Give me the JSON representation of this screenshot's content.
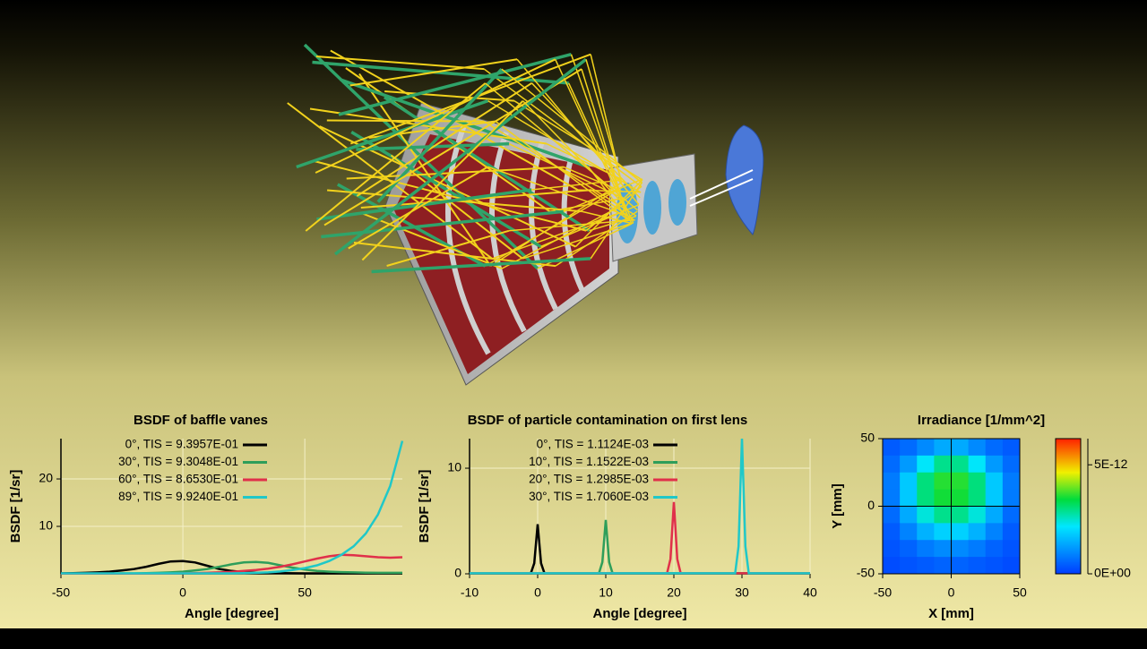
{
  "chart_data": [
    {
      "type": "line",
      "title": "BSDF of baffle vanes",
      "xlabel": "Angle [degree]",
      "ylabel": "BSDF [1/sr]",
      "x": [
        -50,
        -45,
        -40,
        -35,
        -30,
        -25,
        -20,
        -15,
        -10,
        -5,
        0,
        5,
        10,
        15,
        20,
        25,
        30,
        35,
        40,
        45,
        50,
        55,
        60,
        65,
        70,
        75,
        80,
        85,
        90
      ],
      "series": [
        {
          "name": "0°, TIS = 9.3957E-01",
          "color": "#000000",
          "values": [
            0.1,
            0.15,
            0.2,
            0.3,
            0.45,
            0.7,
            1.0,
            1.5,
            2.1,
            2.6,
            2.7,
            2.4,
            1.7,
            1.0,
            0.6,
            0.35,
            0.25,
            0.2,
            0.15,
            0.12,
            0.1,
            0.1,
            0.1,
            0.1,
            0.1,
            0.1,
            0.1,
            0.1,
            0.1
          ]
        },
        {
          "name": "30°, TIS = 9.3048E-01",
          "color": "#2e9e5a",
          "values": [
            0.05,
            0.05,
            0.05,
            0.05,
            0.05,
            0.1,
            0.1,
            0.15,
            0.2,
            0.3,
            0.45,
            0.7,
            1.0,
            1.5,
            2.0,
            2.4,
            2.5,
            2.3,
            1.8,
            1.3,
            0.9,
            0.6,
            0.45,
            0.35,
            0.3,
            0.25,
            0.2,
            0.2,
            0.2
          ]
        },
        {
          "name": "60°, TIS = 8.6530E-01",
          "color": "#e0304a",
          "values": [
            0.05,
            0.05,
            0.05,
            0.05,
            0.05,
            0.05,
            0.05,
            0.05,
            0.05,
            0.05,
            0.1,
            0.15,
            0.2,
            0.3,
            0.4,
            0.6,
            0.8,
            1.1,
            1.5,
            2.0,
            2.6,
            3.2,
            3.7,
            4.0,
            3.9,
            3.7,
            3.5,
            3.4,
            3.5
          ]
        },
        {
          "name": "89°, TIS = 9.9240E-01",
          "color": "#20c8c8",
          "values": [
            0.1,
            0.1,
            0.1,
            0.1,
            0.1,
            0.1,
            0.1,
            0.1,
            0.1,
            0.1,
            0.1,
            0.1,
            0.1,
            0.1,
            0.1,
            0.15,
            0.2,
            0.3,
            0.5,
            0.8,
            1.2,
            1.8,
            2.7,
            4.0,
            5.8,
            8.5,
            12.5,
            18.5,
            28
          ]
        }
      ],
      "xlim": [
        -50,
        90
      ],
      "xticks": [
        -50,
        0,
        50
      ],
      "ylim": [
        0,
        28.5
      ],
      "yticks": [
        10,
        20
      ],
      "grid": true
    },
    {
      "type": "line",
      "title": "BSDF of particle contamination on first lens",
      "xlabel": "Angle [degree]",
      "ylabel": "BSDF [1/sr]",
      "x": [
        -10,
        -1,
        -0.5,
        0,
        0.5,
        1,
        9,
        9.5,
        10,
        10.5,
        11,
        19,
        19.5,
        20,
        20.5,
        21,
        29,
        29.5,
        30,
        30.5,
        31,
        40
      ],
      "series": [
        {
          "name": "0°, TIS = 1.1124E-03",
          "color": "#000000",
          "values": [
            0.05,
            0.05,
            1.0,
            4.7,
            1.0,
            0.05,
            0.05,
            0.05,
            0.05,
            0.05,
            0.05,
            0.05,
            0.05,
            0.05,
            0.05,
            0.05,
            0.05,
            0.05,
            0.05,
            0.05,
            0.05,
            0.05
          ]
        },
        {
          "name": "10°, TIS = 1.1522E-03",
          "color": "#2e9e5a",
          "values": [
            0.05,
            0.05,
            0.05,
            0.05,
            0.05,
            0.05,
            0.05,
            1.1,
            5.1,
            1.1,
            0.05,
            0.05,
            0.05,
            0.05,
            0.05,
            0.05,
            0.05,
            0.05,
            0.05,
            0.05,
            0.05,
            0.05
          ]
        },
        {
          "name": "20°, TIS = 1.2985E-03",
          "color": "#e0304a",
          "values": [
            0.05,
            0.05,
            0.05,
            0.05,
            0.05,
            0.05,
            0.05,
            0.05,
            0.05,
            0.05,
            0.05,
            0.05,
            1.4,
            6.8,
            1.4,
            0.05,
            0.05,
            0.05,
            0.05,
            0.05,
            0.05,
            0.05
          ]
        },
        {
          "name": "30°, TIS = 1.7060E-03",
          "color": "#20c8c8",
          "values": [
            0.05,
            0.05,
            0.05,
            0.05,
            0.05,
            0.05,
            0.05,
            0.05,
            0.05,
            0.05,
            0.05,
            0.05,
            0.05,
            0.05,
            0.05,
            0.05,
            0.05,
            2.6,
            12.8,
            2.6,
            0.05,
            0.05
          ]
        }
      ],
      "xlim": [
        -10,
        40
      ],
      "xticks": [
        -10,
        0,
        10,
        20,
        30,
        40
      ],
      "ylim": [
        0,
        12.8
      ],
      "yticks": [
        0,
        10
      ],
      "grid": true
    },
    {
      "type": "heatmap",
      "title": "Irradiance [1/mm^2]",
      "xlabel": "X [mm]",
      "ylabel": "Y [mm]",
      "xlim": [
        -50,
        50
      ],
      "xticks": [
        -50,
        0,
        50
      ],
      "ylim": [
        -50,
        50
      ],
      "yticks": [
        -50,
        0,
        50
      ],
      "z": [
        [
          4e-13,
          6e-13,
          1e-12,
          1.4e-12,
          1.4e-12,
          1e-12,
          6e-13,
          4e-13
        ],
        [
          6e-13,
          1.2e-12,
          2.2e-12,
          2.9e-12,
          2.9e-12,
          2.2e-12,
          1.2e-12,
          6e-13
        ],
        [
          8e-13,
          1.8e-12,
          3e-12,
          3.6e-12,
          3.6e-12,
          3e-12,
          1.8e-12,
          8e-13
        ],
        [
          8e-13,
          1.8e-12,
          3e-12,
          3.5e-12,
          3.5e-12,
          3e-12,
          1.8e-12,
          8e-13
        ],
        [
          6e-13,
          1.4e-12,
          2.4e-12,
          2.9e-12,
          2.9e-12,
          2.4e-12,
          1.4e-12,
          6e-13
        ],
        [
          4e-13,
          9e-13,
          1.5e-12,
          1.9e-12,
          1.9e-12,
          1.5e-12,
          9e-13,
          4e-13
        ],
        [
          3e-13,
          5e-13,
          8e-13,
          1e-12,
          1e-12,
          8e-13,
          5e-13,
          3e-13
        ],
        [
          2e-13,
          3e-13,
          4e-13,
          5e-13,
          5e-13,
          4e-13,
          3e-13,
          2e-13
        ]
      ],
      "clim": [
        0,
        6.2e-12
      ],
      "cticks": [
        {
          "value": 5e-12,
          "label": "5E-12"
        },
        {
          "value": 0,
          "label": "0E+00"
        }
      ]
    }
  ]
}
